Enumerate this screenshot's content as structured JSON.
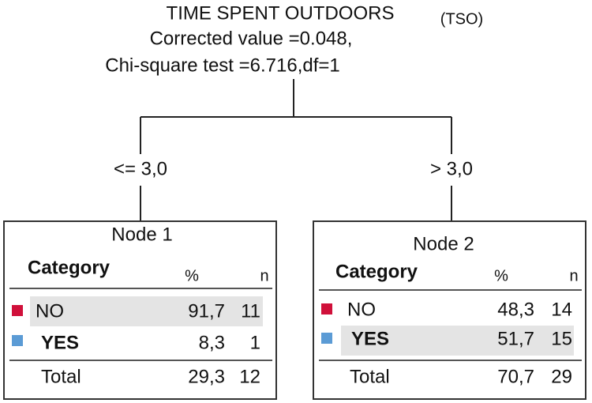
{
  "header": {
    "title": "TIME SPENT OUTDOORS",
    "abbreviation": "(TSO)",
    "corrected_value": "Corrected value  =0.048,",
    "chi_square": "Chi-square test =6.716,df=1"
  },
  "branches": [
    "<= 3,0",
    "> 3,0"
  ],
  "nodes": [
    {
      "title": "Node 1",
      "columns": [
        "Category",
        "%",
        "n"
      ],
      "rows": [
        [
          "NO",
          "91,7",
          "11"
        ],
        [
          "YES",
          "8,3",
          "1"
        ]
      ],
      "total": [
        "Total",
        "29,3",
        "12"
      ]
    },
    {
      "title": "Node 2",
      "columns": [
        "Category",
        "%",
        "n"
      ],
      "rows": [
        [
          "NO",
          "48,3",
          "14"
        ],
        [
          "YES",
          "51,7",
          "15"
        ]
      ],
      "total": [
        "Total",
        "70,7",
        "29"
      ]
    }
  ]
}
